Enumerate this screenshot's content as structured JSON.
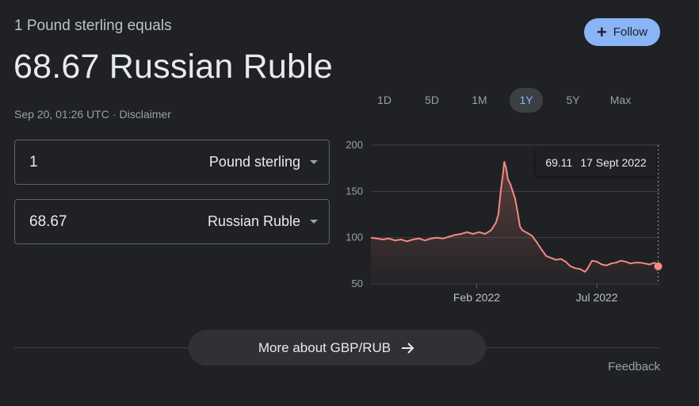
{
  "header": {
    "equals_line": "1 Pound sterling equals",
    "big_value": "68.67 Russian Ruble",
    "timestamp": "Sep 20, 01:26 UTC",
    "separator": "·",
    "disclaimer": "Disclaimer"
  },
  "follow_button": {
    "icon": "plus-icon",
    "label": "Follow"
  },
  "converter": {
    "from": {
      "value": "1",
      "currency": "Pound sterling"
    },
    "to": {
      "value": "68.67",
      "currency": "Russian Ruble"
    }
  },
  "range_tabs": [
    {
      "label": "1D",
      "active": false
    },
    {
      "label": "5D",
      "active": false
    },
    {
      "label": "1M",
      "active": false
    },
    {
      "label": "1Y",
      "active": true
    },
    {
      "label": "5Y",
      "active": false
    },
    {
      "label": "Max",
      "active": false
    }
  ],
  "tooltip": {
    "value": "69.11",
    "date": "17 Sept 2022"
  },
  "chart_data": {
    "type": "area",
    "xlabel": "",
    "ylabel": "",
    "ylim": [
      50,
      200
    ],
    "yticks": [
      200,
      150,
      100,
      50
    ],
    "xtick_labels": [
      {
        "label": "Feb 2022",
        "month_offset": 4.4
      },
      {
        "label": "Jul 2022",
        "month_offset": 9.4
      }
    ],
    "x_range_months": [
      0,
      12
    ],
    "series": [
      {
        "color": "#f28b82",
        "points": [
          [
            0.0,
            100
          ],
          [
            0.25,
            99
          ],
          [
            0.5,
            98
          ],
          [
            0.75,
            99
          ],
          [
            1.0,
            97
          ],
          [
            1.25,
            98
          ],
          [
            1.5,
            96
          ],
          [
            1.75,
            98
          ],
          [
            2.0,
            99
          ],
          [
            2.25,
            97
          ],
          [
            2.5,
            99
          ],
          [
            2.75,
            100
          ],
          [
            3.0,
            99
          ],
          [
            3.25,
            101
          ],
          [
            3.5,
            103
          ],
          [
            3.75,
            104
          ],
          [
            4.0,
            106
          ],
          [
            4.25,
            104
          ],
          [
            4.5,
            106
          ],
          [
            4.75,
            104
          ],
          [
            5.0,
            108
          ],
          [
            5.1,
            112
          ],
          [
            5.2,
            116
          ],
          [
            5.3,
            125
          ],
          [
            5.4,
            150
          ],
          [
            5.5,
            170
          ],
          [
            5.55,
            182
          ],
          [
            5.62,
            176
          ],
          [
            5.7,
            163
          ],
          [
            5.8,
            158
          ],
          [
            5.9,
            150
          ],
          [
            6.0,
            142
          ],
          [
            6.1,
            128
          ],
          [
            6.2,
            112
          ],
          [
            6.3,
            108
          ],
          [
            6.5,
            105
          ],
          [
            6.7,
            102
          ],
          [
            6.9,
            95
          ],
          [
            7.1,
            87
          ],
          [
            7.3,
            80
          ],
          [
            7.5,
            78
          ],
          [
            7.7,
            76
          ],
          [
            7.9,
            77
          ],
          [
            8.1,
            74
          ],
          [
            8.3,
            69
          ],
          [
            8.5,
            67
          ],
          [
            8.7,
            66
          ],
          [
            8.9,
            63
          ],
          [
            9.0,
            66
          ],
          [
            9.2,
            75
          ],
          [
            9.4,
            74
          ],
          [
            9.6,
            71
          ],
          [
            9.8,
            70
          ],
          [
            10.0,
            72
          ],
          [
            10.2,
            73
          ],
          [
            10.4,
            75
          ],
          [
            10.6,
            74
          ],
          [
            10.8,
            72
          ],
          [
            11.0,
            73
          ],
          [
            11.2,
            73
          ],
          [
            11.4,
            72
          ],
          [
            11.6,
            71
          ],
          [
            11.8,
            73
          ],
          [
            11.95,
            69
          ]
        ]
      }
    ]
  },
  "footer": {
    "more_button": "More about GBP/RUB",
    "more_icon": "arrow-right-icon",
    "feedback": "Feedback"
  }
}
